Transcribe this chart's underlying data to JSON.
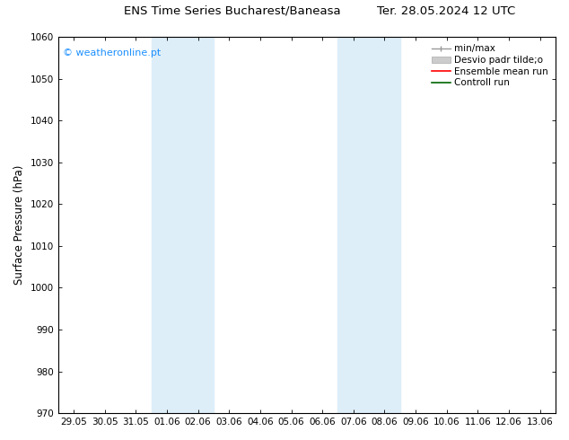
{
  "title_left": "ENS Time Series Bucharest/Baneasa",
  "title_right": "Ter. 28.05.2024 12 UTC",
  "ylabel": "Surface Pressure (hPa)",
  "ylim": [
    970,
    1060
  ],
  "yticks": [
    970,
    980,
    990,
    1000,
    1010,
    1020,
    1030,
    1040,
    1050,
    1060
  ],
  "xtick_labels": [
    "29.05",
    "30.05",
    "31.05",
    "01.06",
    "02.06",
    "03.06",
    "04.06",
    "05.06",
    "06.06",
    "07.06",
    "08.06",
    "09.06",
    "10.06",
    "11.06",
    "12.06",
    "13.06"
  ],
  "shaded_regions": [
    {
      "xstart": 3,
      "xend": 5,
      "color": "#ddeef8"
    },
    {
      "xstart": 9,
      "xend": 11,
      "color": "#ddeef8"
    }
  ],
  "watermark": "© weatheronline.pt",
  "watermark_color": "#1e90ff",
  "background_color": "#ffffff",
  "plot_bg_color": "#ffffff",
  "tick_label_fontsize": 7.5,
  "title_fontsize": 9.5,
  "axis_label_fontsize": 8.5,
  "legend_fontsize": 7.5
}
